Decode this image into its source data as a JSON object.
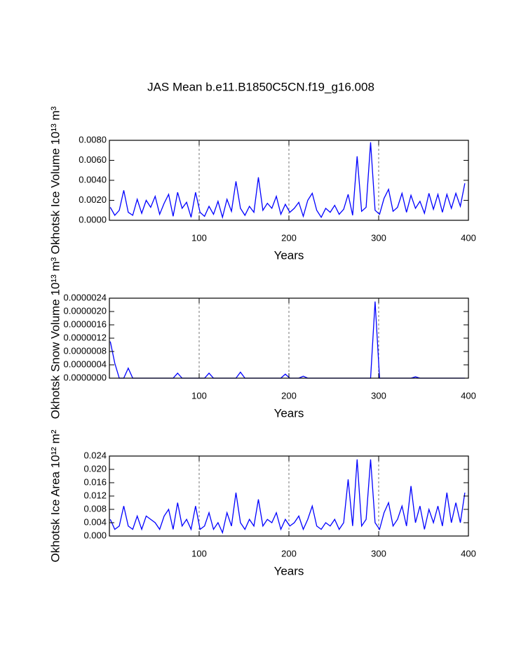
{
  "title": "JAS Mean b.e11.B1850C5CN.f19_g16.008",
  "chart_data": [
    {
      "type": "line",
      "xlabel": "Years",
      "ylabel": "Okhotsk Ice Volume 10¹³ m³",
      "xlim": [
        0,
        400
      ],
      "xticks": [
        100,
        200,
        300,
        400
      ],
      "grid": true,
      "grid_axis": "x",
      "ylim": [
        0,
        0.008
      ],
      "yticks": [
        {
          "value": 0,
          "label": "0.0000"
        },
        {
          "value": 0.002,
          "label": "0.0020"
        },
        {
          "value": 0.004,
          "label": "0.0040"
        },
        {
          "value": 0.006,
          "label": "0.0060"
        },
        {
          "value": 0.008,
          "label": "0.0080"
        }
      ],
      "x": [
        1,
        6,
        11,
        16,
        21,
        26,
        31,
        36,
        41,
        46,
        51,
        56,
        61,
        66,
        71,
        76,
        81,
        86,
        91,
        96,
        101,
        106,
        111,
        116,
        121,
        126,
        131,
        136,
        141,
        146,
        151,
        156,
        161,
        166,
        171,
        176,
        181,
        186,
        191,
        196,
        201,
        206,
        211,
        216,
        221,
        226,
        231,
        236,
        241,
        246,
        251,
        256,
        261,
        266,
        271,
        276,
        281,
        286,
        291,
        296,
        301,
        306,
        311,
        316,
        321,
        326,
        331,
        336,
        341,
        346,
        351,
        356,
        361,
        366,
        371,
        376,
        381,
        386,
        391,
        396
      ],
      "series": [
        {
          "color": "#0000ff",
          "values": [
            0.0013,
            0.0005,
            0.001,
            0.003,
            0.0008,
            0.0005,
            0.0021,
            0.0007,
            0.002,
            0.0013,
            0.0024,
            0.0006,
            0.0017,
            0.0026,
            0.0004,
            0.0028,
            0.0012,
            0.0018,
            0.0003,
            0.0028,
            0.0008,
            0.0004,
            0.0014,
            0.0006,
            0.0019,
            0.0003,
            0.0021,
            0.0009,
            0.0039,
            0.0012,
            0.0005,
            0.0014,
            0.0008,
            0.0043,
            0.001,
            0.0017,
            0.0012,
            0.0024,
            0.0006,
            0.0016,
            0.0008,
            0.0012,
            0.0018,
            0.0004,
            0.002,
            0.0027,
            0.001,
            0.0003,
            0.0012,
            0.0008,
            0.0015,
            0.0006,
            0.0011,
            0.0026,
            0.0005,
            0.0064,
            0.0009,
            0.0013,
            0.0078,
            0.001,
            0.0006,
            0.0022,
            0.0031,
            0.0009,
            0.0013,
            0.0027,
            0.0008,
            0.0025,
            0.0012,
            0.0019,
            0.0007,
            0.0027,
            0.0011,
            0.0026,
            0.0008,
            0.0026,
            0.0012,
            0.0027,
            0.0014,
            0.0037
          ]
        }
      ]
    },
    {
      "type": "line",
      "xlabel": "Years",
      "ylabel": "Okhotsk Snow Volume 10¹³ m³",
      "xlim": [
        0,
        400
      ],
      "xticks": [
        100,
        200,
        300,
        400
      ],
      "grid": true,
      "grid_axis": "x",
      "ylim": [
        0,
        2.4e-06
      ],
      "yticks": [
        {
          "value": 0,
          "label": "0.0000000"
        },
        {
          "value": 4e-07,
          "label": "0.0000004"
        },
        {
          "value": 8e-07,
          "label": "0.0000008"
        },
        {
          "value": 1.2e-06,
          "label": "0.0000012"
        },
        {
          "value": 1.6e-06,
          "label": "0.0000016"
        },
        {
          "value": 2e-06,
          "label": "0.0000020"
        },
        {
          "value": 2.4e-06,
          "label": "0.0000024"
        }
      ],
      "x": [
        1,
        6,
        11,
        16,
        21,
        26,
        31,
        36,
        41,
        46,
        51,
        56,
        61,
        66,
        71,
        76,
        81,
        86,
        91,
        96,
        101,
        106,
        111,
        116,
        121,
        126,
        131,
        136,
        141,
        146,
        151,
        156,
        161,
        166,
        171,
        176,
        181,
        186,
        191,
        196,
        201,
        206,
        211,
        216,
        221,
        226,
        231,
        236,
        241,
        246,
        251,
        256,
        261,
        266,
        271,
        276,
        281,
        286,
        291,
        296,
        301,
        306,
        311,
        316,
        321,
        326,
        331,
        336,
        341,
        346,
        351,
        356,
        361,
        366,
        371,
        376,
        381,
        386,
        391,
        396
      ],
      "series": [
        {
          "color": "#0000ff",
          "values": [
            1.1e-06,
            4.5e-07,
            0,
            0,
            3e-07,
            0,
            0,
            0,
            0,
            0,
            0,
            0,
            0,
            0,
            0,
            1.5e-07,
            0,
            0,
            0,
            0,
            0,
            0,
            1.5e-07,
            0,
            0,
            0,
            0,
            0,
            0,
            1.8e-07,
            0,
            0,
            0,
            0,
            0,
            0,
            0,
            0,
            0,
            1.2e-07,
            0,
            0,
            0,
            6e-08,
            0,
            0,
            0,
            0,
            0,
            0,
            0,
            0,
            0,
            0,
            0,
            0,
            0,
            0,
            0,
            2.3e-06,
            0,
            0,
            0,
            0,
            0,
            0,
            0,
            0,
            4e-08,
            0,
            0,
            0,
            0,
            0,
            0,
            0,
            0,
            0,
            0,
            0
          ]
        }
      ]
    },
    {
      "type": "line",
      "xlabel": "Years",
      "ylabel": "Okhotsk Ice Area 10¹² m²",
      "xlim": [
        0,
        400
      ],
      "xticks": [
        100,
        200,
        300,
        400
      ],
      "grid": true,
      "grid_axis": "x",
      "ylim": [
        0,
        0.024
      ],
      "yticks": [
        {
          "value": 0,
          "label": "0.000"
        },
        {
          "value": 0.004,
          "label": "0.004"
        },
        {
          "value": 0.008,
          "label": "0.008"
        },
        {
          "value": 0.012,
          "label": "0.012"
        },
        {
          "value": 0.016,
          "label": "0.016"
        },
        {
          "value": 0.02,
          "label": "0.020"
        },
        {
          "value": 0.024,
          "label": "0.024"
        }
      ],
      "x": [
        1,
        6,
        11,
        16,
        21,
        26,
        31,
        36,
        41,
        46,
        51,
        56,
        61,
        66,
        71,
        76,
        81,
        86,
        91,
        96,
        101,
        106,
        111,
        116,
        121,
        126,
        131,
        136,
        141,
        146,
        151,
        156,
        161,
        166,
        171,
        176,
        181,
        186,
        191,
        196,
        201,
        206,
        211,
        216,
        221,
        226,
        231,
        236,
        241,
        246,
        251,
        256,
        261,
        266,
        271,
        276,
        281,
        286,
        291,
        296,
        301,
        306,
        311,
        316,
        321,
        326,
        331,
        336,
        341,
        346,
        351,
        356,
        361,
        366,
        371,
        376,
        381,
        386,
        391,
        396
      ],
      "series": [
        {
          "color": "#0000ff",
          "values": [
            0.005,
            0.002,
            0.003,
            0.009,
            0.003,
            0.002,
            0.006,
            0.002,
            0.006,
            0.005,
            0.004,
            0.002,
            0.006,
            0.008,
            0.002,
            0.01,
            0.003,
            0.005,
            0.002,
            0.009,
            0.002,
            0.003,
            0.007,
            0.002,
            0.004,
            0.001,
            0.007,
            0.003,
            0.013,
            0.004,
            0.002,
            0.005,
            0.003,
            0.011,
            0.003,
            0.005,
            0.004,
            0.007,
            0.002,
            0.005,
            0.003,
            0.004,
            0.006,
            0.002,
            0.005,
            0.009,
            0.003,
            0.002,
            0.004,
            0.003,
            0.005,
            0.002,
            0.004,
            0.017,
            0.003,
            0.023,
            0.003,
            0.005,
            0.023,
            0.004,
            0.002,
            0.007,
            0.01,
            0.003,
            0.005,
            0.009,
            0.003,
            0.015,
            0.004,
            0.009,
            0.002,
            0.008,
            0.004,
            0.009,
            0.003,
            0.013,
            0.004,
            0.01,
            0.004,
            0.013
          ]
        }
      ]
    }
  ]
}
